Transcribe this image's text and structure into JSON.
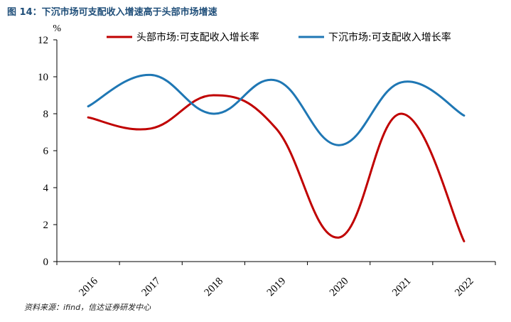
{
  "figure_label": "图 14：下沉市场可支配收入增速高于头部市场增速",
  "source_note": "资料来源：ifind，信达证券研发中心",
  "chart_data": {
    "type": "line",
    "title": "下沉市场可支配收入增速高于头部市场增速",
    "xlabel": "",
    "ylabel": "%",
    "categories": [
      "2016",
      "2017",
      "2018",
      "2019",
      "2020",
      "2021",
      "2022"
    ],
    "ylim": [
      0,
      12
    ],
    "yticks": [
      0,
      2,
      4,
      6,
      8,
      10,
      12
    ],
    "grid": false,
    "legend_position": "top",
    "series": [
      {
        "name": "头部市场:可支配收入增长率",
        "color": "#c00000",
        "values": [
          7.8,
          7.2,
          9.0,
          7.2,
          1.3,
          8.0,
          1.1
        ]
      },
      {
        "name": "下沉市场:可支配收入增长率",
        "color": "#1f77b4",
        "values": [
          8.4,
          10.1,
          8.0,
          9.8,
          6.3,
          9.7,
          7.9
        ]
      }
    ]
  }
}
